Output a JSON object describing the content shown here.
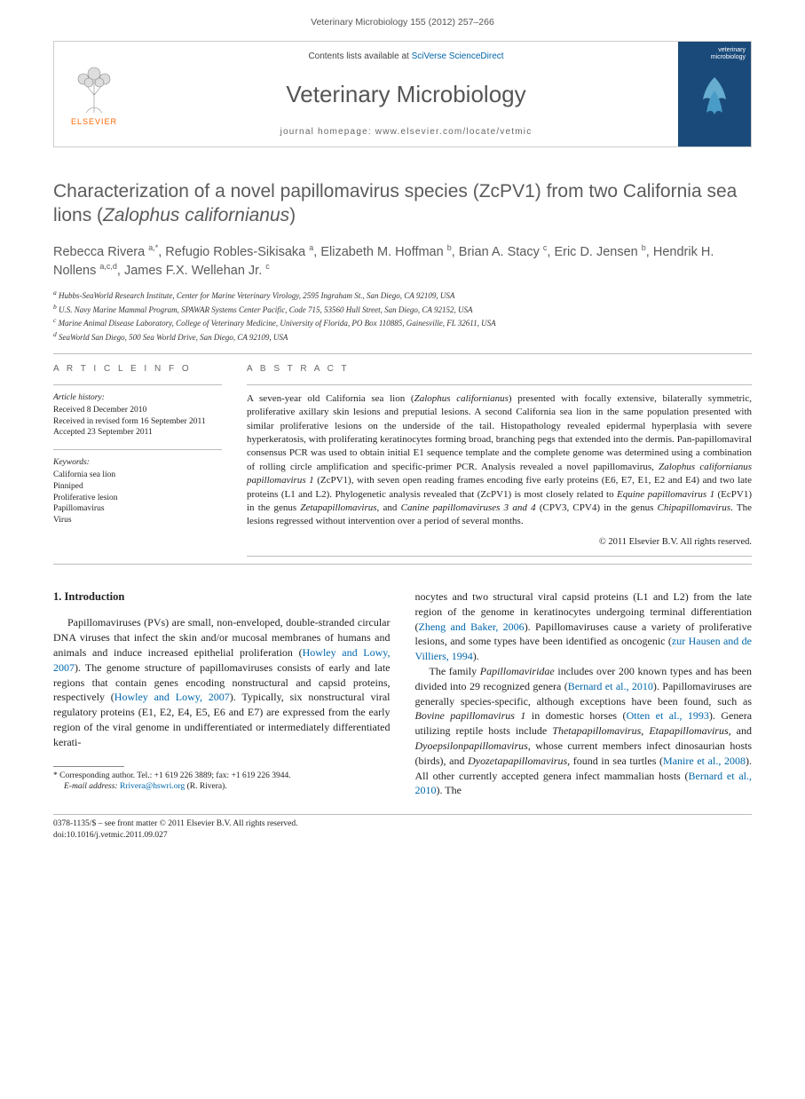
{
  "header": {
    "citation": "Veterinary Microbiology 155 (2012) 257–266",
    "contents_prefix": "Contents lists available at ",
    "contents_link": "SciVerse ScienceDirect",
    "journal_name": "Veterinary Microbiology",
    "homepage_prefix": "journal homepage: ",
    "homepage_url": "www.elsevier.com/locate/vetmic",
    "publisher": "ELSEVIER",
    "cover_label": "veterinary\nmicrobiology"
  },
  "article": {
    "title_plain": "Characterization of a novel papillomavirus species (ZcPV1) from two California sea lions (",
    "title_species": "Zalophus californianus",
    "title_end": ")",
    "authors_html": "Rebecca Rivera <sup>a,*</sup>, Refugio Robles-Sikisaka <sup>a</sup>, Elizabeth M. Hoffman <sup>b</sup>, Brian A. Stacy <sup>c</sup>, Eric D. Jensen <sup>b</sup>, Hendrik H. Nollens <sup>a,c,d</sup>, James F.X. Wellehan Jr. <sup>c</sup>",
    "affiliations": [
      "a Hubbs-SeaWorld Research Institute, Center for Marine Veterinary Virology, 2595 Ingraham St., San Diego, CA 92109, USA",
      "b U.S. Navy Marine Mammal Program, SPAWAR Systems Center Pacific, Code 715, 53560 Hull Street, San Diego, CA 92152, USA",
      "c Marine Animal Disease Laboratory, College of Veterinary Medicine, University of Florida, PO Box 110885, Gainesville, FL 32611, USA",
      "d SeaWorld San Diego, 500 Sea World Drive, San Diego, CA 92109, USA"
    ]
  },
  "info": {
    "label": "A R T I C L E   I N F O",
    "history_head": "Article history:",
    "history": [
      "Received 8 December 2010",
      "Received in revised form 16 September 2011",
      "Accepted 23 September 2011"
    ],
    "keywords_head": "Keywords:",
    "keywords": [
      "California sea lion",
      "Pinniped",
      "Proliferative lesion",
      "Papillomavirus",
      "Virus"
    ]
  },
  "abstract": {
    "label": "A B S T R A C T",
    "text": "A seven-year old California sea lion (<em>Zalophus californianus</em>) presented with focally extensive, bilaterally symmetric, proliferative axillary skin lesions and preputial lesions. A second California sea lion in the same population presented with similar proliferative lesions on the underside of the tail. Histopathology revealed epidermal hyperplasia with severe hyperkeratosis, with proliferating keratinocytes forming broad, branching pegs that extended into the dermis. Pan-papillomaviral consensus PCR was used to obtain initial E1 sequence template and the complete genome was determined using a combination of rolling circle amplification and specific-primer PCR. Analysis revealed a novel papillomavirus, <em>Zalophus californianus papillomavirus 1</em> (ZcPV1), with seven open reading frames encoding five early proteins (E6, E7, E1, E2 and E4) and two late proteins (L1 and L2). Phylogenetic analysis revealed that (ZcPV1) is most closely related to <em>Equine papillomavirus 1</em> (EcPV1) in the genus <em>Zetapapillomavirus</em>, and <em>Canine papillomaviruses 3 and 4</em> (CPV3, CPV4) in the genus <em>Chipapillomavirus</em>. The lesions regressed without intervention over a period of several months.",
    "copyright": "© 2011 Elsevier B.V. All rights reserved."
  },
  "body": {
    "section_num": "1.",
    "section_title": "Introduction",
    "col1_p1": "Papillomaviruses (PVs) are small, non-enveloped, double-stranded circular DNA viruses that infect the skin and/or mucosal membranes of humans and animals and induce increased epithelial proliferation (<span class=\"cite-link\">Howley and Lowy, 2007</span>). The genome structure of papillomaviruses consists of early and late regions that contain genes encoding nonstructural and capsid proteins, respectively (<span class=\"cite-link\">Howley and Lowy, 2007</span>). Typically, six nonstructural viral regulatory proteins (E1, E2, E4, E5, E6 and E7) are expressed from the early region of the viral genome in undifferentiated or intermediately differentiated kerati-",
    "col2_p1": "nocytes and two structural viral capsid proteins (L1 and L2) from the late region of the genome in keratinocytes undergoing terminal differentiation (<span class=\"cite-link\">Zheng and Baker, 2006</span>). Papillomaviruses cause a variety of proliferative lesions, and some types have been identified as oncogenic (<span class=\"cite-link\">zur Hausen and de Villiers, 1994</span>).",
    "col2_p2": "The family <em>Papillomaviridae</em> includes over 200 known types and has been divided into 29 recognized genera (<span class=\"cite-link\">Bernard et al., 2010</span>). Papillomaviruses are generally species-specific, although exceptions have been found, such as <em>Bovine papillomavirus 1</em> in domestic horses (<span class=\"cite-link\">Otten et al., 1993</span>). Genera utilizing reptile hosts include <em>Thetapapillomavirus</em>, <em>Etapapillomavirus</em>, and <em>Dyoepsilonpapillomavirus</em>, whose current members infect dinosaurian hosts (birds), and <em>Dyozetapapillomavirus</em>, found in sea turtles (<span class=\"cite-link\">Manire et al., 2008</span>). All other currently accepted genera infect mammalian hosts (<span class=\"cite-link\">Bernard et al., 2010</span>). The"
  },
  "footnote": {
    "corresponding": "* Corresponding author. Tel.: +1 619 226 3889; fax: +1 619 226 3944.",
    "email_label": "E-mail address:",
    "email": "Rrivera@hswri.org",
    "email_attr": "(R. Rivera)."
  },
  "footer": {
    "issn_line": "0378-1135/$ – see front matter © 2011 Elsevier B.V. All rights reserved.",
    "doi_line": "doi:10.1016/j.vetmic.2011.09.027"
  },
  "colors": {
    "link": "#0066aa",
    "heading_gray": "#5b5b5b",
    "elsevier_orange": "#ff6600",
    "cover_bg": "#1a4a7a"
  }
}
